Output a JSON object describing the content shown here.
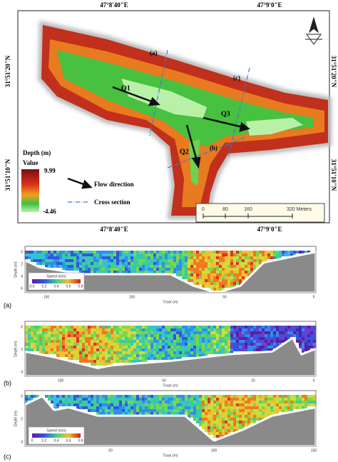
{
  "map": {
    "top_labels": [
      "47°8'40\"E",
      "47°9'0\"E"
    ],
    "bottom_labels": [
      "47°8'40\"E",
      "47°9'0\"E"
    ],
    "left_labels": [
      "31°51'20\"N",
      "31°51'10\"N"
    ],
    "right_labels": [
      "31°51'20\"N",
      "31°51'10\"N"
    ],
    "flow_labels": [
      "Q1",
      "Q2",
      "Q3"
    ],
    "section_labels": [
      "(a)",
      "(b)",
      "(c)"
    ],
    "legend": {
      "title": "Depth (m)",
      "subtitle": "Value",
      "max": "9.99",
      "min": "-4.46",
      "flow": "Flow direction",
      "section": "Cross section"
    },
    "scale_bar": [
      "0",
      "80",
      "160",
      "320 Meters"
    ]
  },
  "panels": [
    {
      "label": "(a)",
      "y_axis": "Depth (m)",
      "x_axis": "Track (m)",
      "yticks": [
        "0",
        "2",
        "4",
        "6"
      ],
      "xticks": [
        "150",
        "100",
        "50",
        "0"
      ],
      "legend_title": "Speed (m/s)",
      "legend_ticks": [
        "0.0",
        "0.2",
        "0.4",
        "0.6",
        "0.8"
      ]
    },
    {
      "label": "(b)",
      "y_axis": "Depth (m)",
      "x_axis": "Track (m)",
      "yticks": [
        "0",
        "2",
        "4"
      ],
      "xticks": [
        "100",
        "50",
        "25",
        "0"
      ]
    },
    {
      "label": "(c)",
      "y_axis": "Depth (m)",
      "x_axis": "Track (m)",
      "yticks": [
        "0",
        "2",
        "4"
      ],
      "xticks": [
        "50",
        "100",
        "150"
      ],
      "legend_title": "Speed (m/s)",
      "legend_ticks": [
        "0",
        "0.2",
        "0.4",
        "0.6",
        "0.8"
      ]
    }
  ]
}
